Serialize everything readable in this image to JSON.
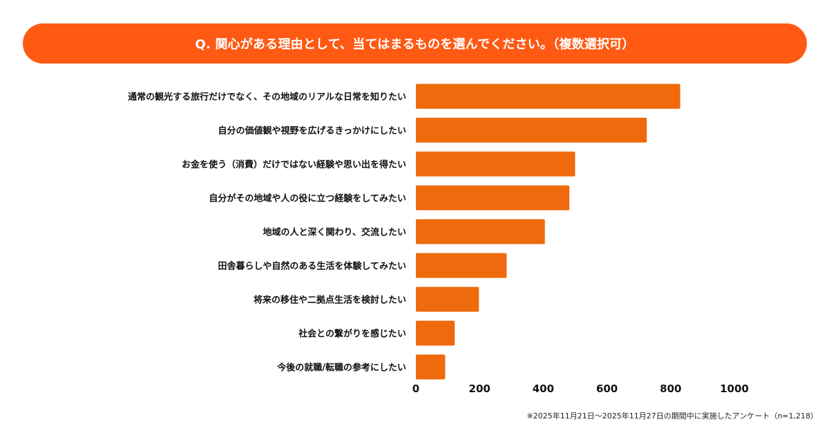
{
  "chart_data": {
    "type": "bar",
    "orientation": "horizontal",
    "title": "Q. 関心がある理由として、当てはまるものを選んでください。（複数選択可）",
    "categories": [
      "通常の観光する旅行だけでなく、その地域のリアルな日常を知りたい",
      "自分の価値観や視野を広げるきっかけにしたい",
      "お金を使う（消費）だけではない経験や思い出を得たい",
      "自分がその地域や人の役に立つ経験をしてみたい",
      "地域の人と深く関わり、交流したい",
      "田舎暮らしや自然のある生活を体験してみたい",
      "将来の移住や二拠点生活を検討したい",
      "社会との繋がりを感じたい",
      "今後の就職/転職の参考にしたい"
    ],
    "values": [
      830,
      725,
      500,
      482,
      405,
      285,
      198,
      122,
      92
    ],
    "xlim": [
      0,
      1000
    ],
    "xticks": [
      "0",
      "200",
      "400",
      "600",
      "800",
      "1000"
    ],
    "grid": false,
    "legend": "none",
    "bar_color": "#ee6a0c",
    "banner_color": "#ff5a14"
  },
  "footnote": "※2025年11月21日〜2025年11月27日の期間中に実施したアンケート（n=1,218）"
}
